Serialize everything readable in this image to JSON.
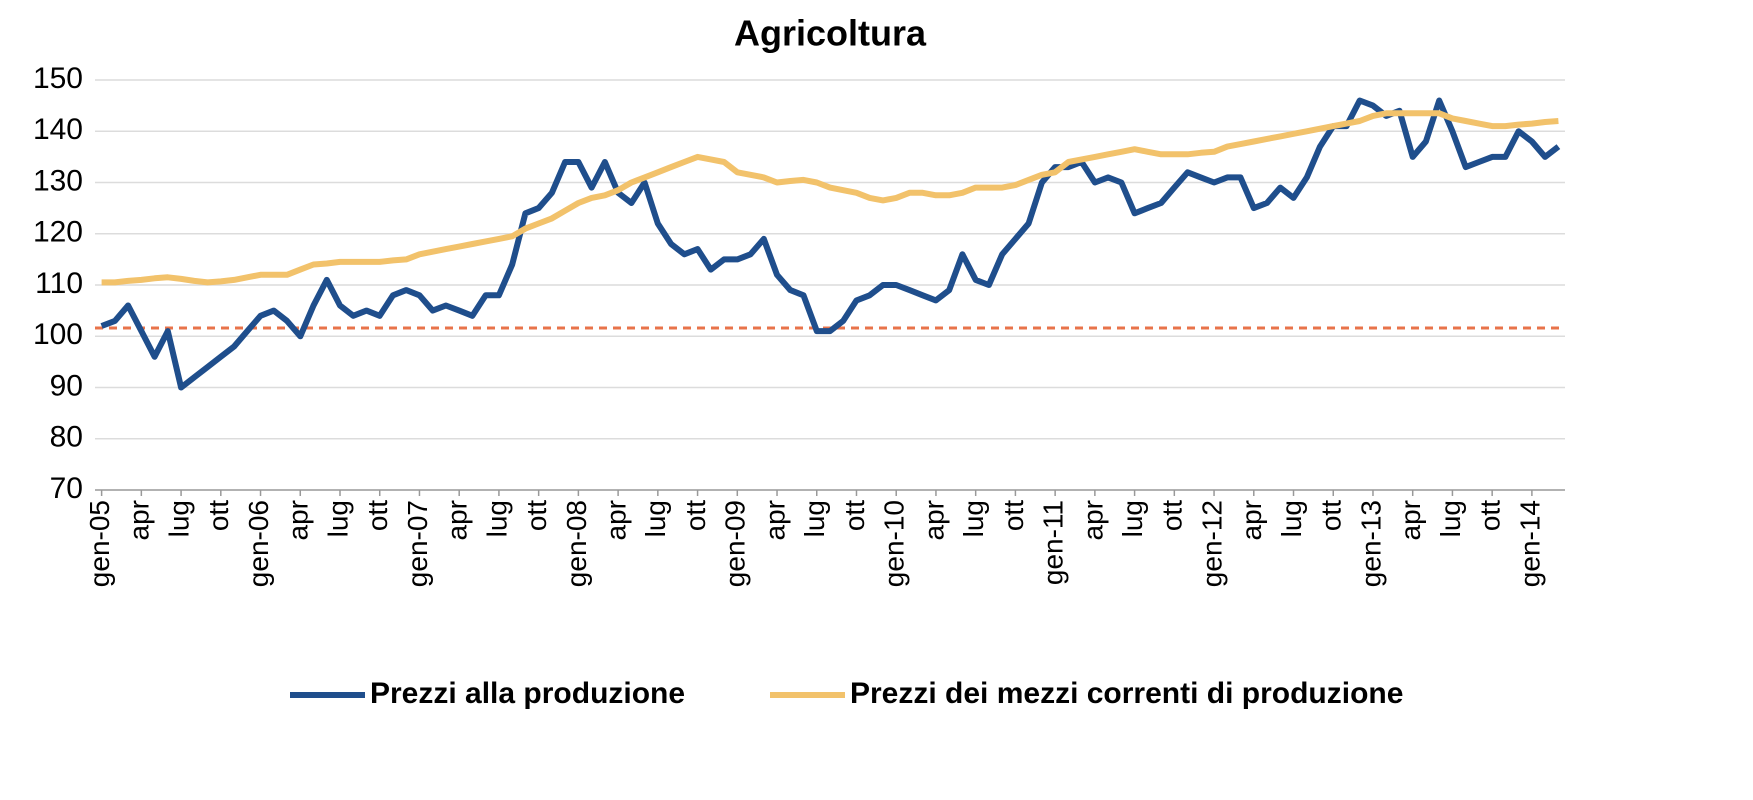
{
  "chart_data": {
    "type": "line",
    "title": "Agricoltura",
    "categories": [
      "gen-05",
      null,
      null,
      "apr",
      null,
      null,
      "lug",
      null,
      null,
      "ott",
      null,
      null,
      "gen-06",
      null,
      null,
      "apr",
      null,
      null,
      "lug",
      null,
      null,
      "ott",
      null,
      null,
      "gen-07",
      null,
      null,
      "apr",
      null,
      null,
      "lug",
      null,
      null,
      "ott",
      null,
      null,
      "gen-08",
      null,
      null,
      "apr",
      null,
      null,
      "lug",
      null,
      null,
      "ott",
      null,
      null,
      "gen-09",
      null,
      null,
      "apr",
      null,
      null,
      "lug",
      null,
      null,
      "ott",
      null,
      null,
      "gen-10",
      null,
      null,
      "apr",
      null,
      null,
      "lug",
      null,
      null,
      "ott",
      null,
      null,
      "gen-11",
      null,
      null,
      "apr",
      null,
      null,
      "lug",
      null,
      null,
      "ott",
      null,
      null,
      "gen-12",
      null,
      null,
      "apr",
      null,
      null,
      "lug",
      null,
      null,
      "ott",
      null,
      null,
      "gen-13",
      null,
      null,
      "apr",
      null,
      null,
      "lug",
      null,
      null,
      "ott",
      null,
      null,
      "gen-14",
      null,
      null
    ],
    "series": [
      {
        "name": "Prezzi alla produzione",
        "color": "#1f4e8c",
        "values": [
          102,
          103,
          106,
          101,
          96,
          101,
          90,
          92,
          94,
          96,
          98,
          101,
          104,
          105,
          103,
          100,
          106,
          111,
          106,
          104,
          105,
          104,
          108,
          109,
          108,
          105,
          106,
          105,
          104,
          108,
          108,
          114,
          124,
          125,
          128,
          134,
          134,
          129,
          134,
          128,
          126,
          130,
          122,
          118,
          116,
          117,
          113,
          115,
          115,
          116,
          119,
          112,
          109,
          108,
          101,
          101,
          103,
          107,
          108,
          110,
          110,
          109,
          108,
          107,
          109,
          116,
          111,
          110,
          116,
          119,
          122,
          130,
          133,
          133,
          134,
          130,
          131,
          130,
          124,
          125,
          126,
          129,
          132,
          131,
          130,
          131,
          131,
          125,
          126,
          129,
          127,
          131,
          137,
          141,
          141,
          146,
          145,
          143,
          144,
          135,
          138,
          146,
          140,
          133,
          134,
          135,
          135,
          140,
          138,
          135,
          137
        ]
      },
      {
        "name": "Prezzi dei mezzi correnti di produzione",
        "color": "#f2c26b",
        "values": [
          110.5,
          110.5,
          110.8,
          111,
          111.3,
          111.5,
          111.2,
          110.8,
          110.5,
          110.7,
          111,
          111.5,
          112,
          112,
          112,
          113,
          114,
          114.2,
          114.5,
          114.5,
          114.5,
          114.5,
          114.8,
          115,
          116,
          116.5,
          117,
          117.5,
          118,
          118.5,
          119,
          119.5,
          121,
          122,
          123,
          124.5,
          126,
          127,
          127.5,
          128.5,
          130,
          131,
          132,
          133,
          134,
          135,
          134.5,
          134,
          132,
          131.5,
          131,
          130,
          130.3,
          130.5,
          130,
          129,
          128.5,
          128,
          127,
          126.5,
          127,
          128,
          128,
          127.5,
          127.5,
          128,
          129,
          129,
          129,
          129.5,
          130.5,
          131.5,
          132,
          134,
          134.5,
          135,
          135.5,
          136,
          136.5,
          136,
          135.5,
          135.5,
          135.5,
          135.8,
          136,
          137,
          137.5,
          138,
          138.5,
          139,
          139.5,
          140,
          140.5,
          141,
          141.5,
          142,
          143,
          143.5,
          143.5,
          143.5,
          143.5,
          143.5,
          142.5,
          142,
          141.5,
          141,
          141,
          141.3,
          141.5,
          141.8,
          142
        ]
      }
    ],
    "reference_line": {
      "value": 101.6,
      "color": "#e8734a",
      "dashed": true
    },
    "ylim": [
      70,
      150
    ],
    "yticks": [
      70,
      80,
      90,
      100,
      110,
      120,
      130,
      140,
      150
    ],
    "grid": true,
    "legend": "bottom"
  }
}
